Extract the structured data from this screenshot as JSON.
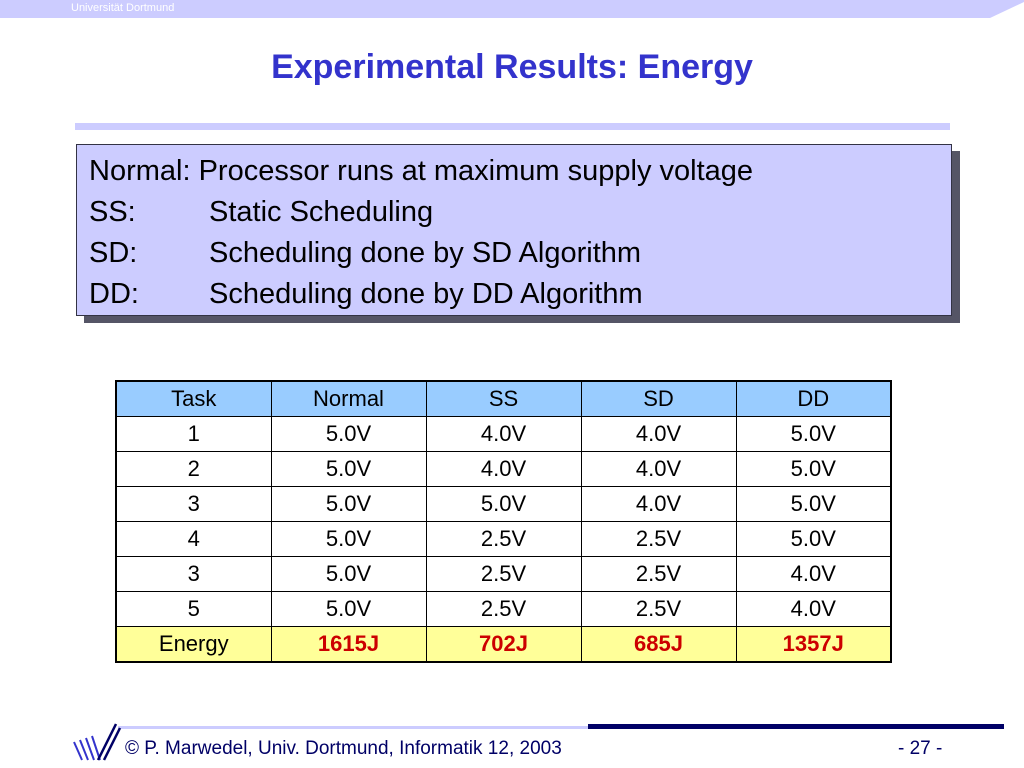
{
  "header": {
    "university": "Universität Dortmund"
  },
  "title": "Experimental Results: Energy",
  "definitions": [
    {
      "term": "Normal:",
      "text": "Processor runs at maximum supply voltage",
      "full": "Normal: Processor runs at maximum supply voltage"
    },
    {
      "term": "SS:",
      "text": "Static Scheduling"
    },
    {
      "term": "SD:",
      "text": "Scheduling done by SD Algorithm"
    },
    {
      "term": "DD:",
      "text": "Scheduling done by DD Algorithm"
    }
  ],
  "table": {
    "headers": [
      "Task",
      "Normal",
      "SS",
      "SD",
      "DD"
    ],
    "rows": [
      [
        "1",
        "5.0V",
        "4.0V",
        "4.0V",
        "5.0V"
      ],
      [
        "2",
        "5.0V",
        "4.0V",
        "4.0V",
        "5.0V"
      ],
      [
        "3",
        "5.0V",
        "5.0V",
        "4.0V",
        "5.0V"
      ],
      [
        "4",
        "5.0V",
        "2.5V",
        "2.5V",
        "5.0V"
      ],
      [
        "3",
        "5.0V",
        "2.5V",
        "2.5V",
        "4.0V"
      ],
      [
        "5",
        "5.0V",
        "2.5V",
        "2.5V",
        "4.0V"
      ]
    ],
    "energy_row": [
      "Energy",
      "1615J",
      "702J",
      "685J",
      "1357J"
    ]
  },
  "footer": {
    "copyright": "© P. Marwedel, Univ. Dortmund, Informatik 12, 2003",
    "page": "-  27 -"
  },
  "colors": {
    "title": "#3333cc",
    "header_bar": "#ccccff",
    "table_header": "#99ccff",
    "energy_row": "#ffff99",
    "energy_values": "#cc0000",
    "footer_text": "#000066"
  }
}
